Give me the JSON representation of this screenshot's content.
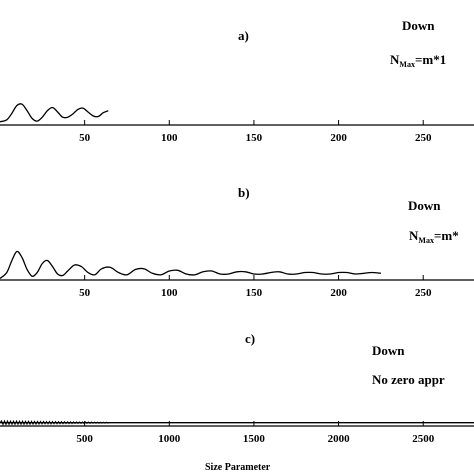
{
  "chart_data": [
    {
      "type": "line",
      "panel_label": "a)",
      "annotations": {
        "line1": "Down",
        "line2_main": "N",
        "line2_sub": "Max",
        "line2_rest": "=m*1"
      },
      "xlim": [
        0,
        280
      ],
      "xticks": [
        50,
        100,
        150,
        200,
        250
      ],
      "xtick_labels": [
        "50",
        "100",
        "150",
        "200",
        "250"
      ],
      "series": [
        {
          "x": [
            0,
            4,
            7,
            10,
            13,
            16,
            19,
            22,
            25,
            28,
            31,
            34,
            37,
            40,
            43,
            46,
            49,
            52,
            55,
            58,
            61,
            64
          ],
          "y": [
            0.05,
            0.08,
            0.18,
            0.3,
            0.32,
            0.22,
            0.1,
            0.06,
            0.12,
            0.22,
            0.27,
            0.2,
            0.12,
            0.12,
            0.17,
            0.24,
            0.26,
            0.2,
            0.14,
            0.13,
            0.19,
            0.22
          ]
        }
      ]
    },
    {
      "type": "line",
      "panel_label": "b)",
      "annotations": {
        "line1": "Down",
        "line2_main": "N",
        "line2_sub": "Max",
        "line2_rest": "=m*"
      },
      "xlim": [
        0,
        280
      ],
      "xticks": [
        50,
        100,
        150,
        200,
        250
      ],
      "xtick_labels": [
        "50",
        "100",
        "150",
        "200",
        "250"
      ],
      "series": [
        {
          "x": [
            0,
            4,
            7,
            10,
            13,
            16,
            19,
            22,
            25,
            28,
            31,
            34,
            37,
            40,
            44,
            48,
            52,
            56,
            60,
            65,
            70,
            75,
            80,
            85,
            90,
            95,
            100,
            105,
            110,
            115,
            120,
            125,
            130,
            135,
            140,
            145,
            150,
            155,
            160,
            165,
            170,
            175,
            180,
            185,
            190,
            195,
            200,
            205,
            210,
            215,
            220,
            225
          ],
          "y": [
            0.02,
            0.1,
            0.26,
            0.38,
            0.3,
            0.14,
            0.05,
            0.1,
            0.22,
            0.26,
            0.18,
            0.08,
            0.06,
            0.12,
            0.2,
            0.18,
            0.1,
            0.07,
            0.15,
            0.17,
            0.1,
            0.07,
            0.14,
            0.15,
            0.09,
            0.07,
            0.12,
            0.13,
            0.08,
            0.07,
            0.11,
            0.12,
            0.08,
            0.08,
            0.11,
            0.11,
            0.08,
            0.08,
            0.1,
            0.11,
            0.08,
            0.08,
            0.1,
            0.1,
            0.08,
            0.08,
            0.1,
            0.1,
            0.08,
            0.09,
            0.1,
            0.09
          ]
        }
      ]
    },
    {
      "type": "line",
      "panel_label": "c)",
      "annotations": {
        "line1": "Down",
        "line2": "No zero appr"
      },
      "xlim": [
        0,
        2800
      ],
      "xticks": [
        500,
        1000,
        1500,
        2000,
        2500
      ],
      "xtick_labels": [
        "500",
        "1000",
        "1500",
        "2000",
        "2500"
      ],
      "xlabel": "Size Parameter",
      "series": [
        {
          "x": [
            0,
            2800
          ],
          "y": [
            0.05,
            0.05
          ]
        }
      ]
    }
  ]
}
